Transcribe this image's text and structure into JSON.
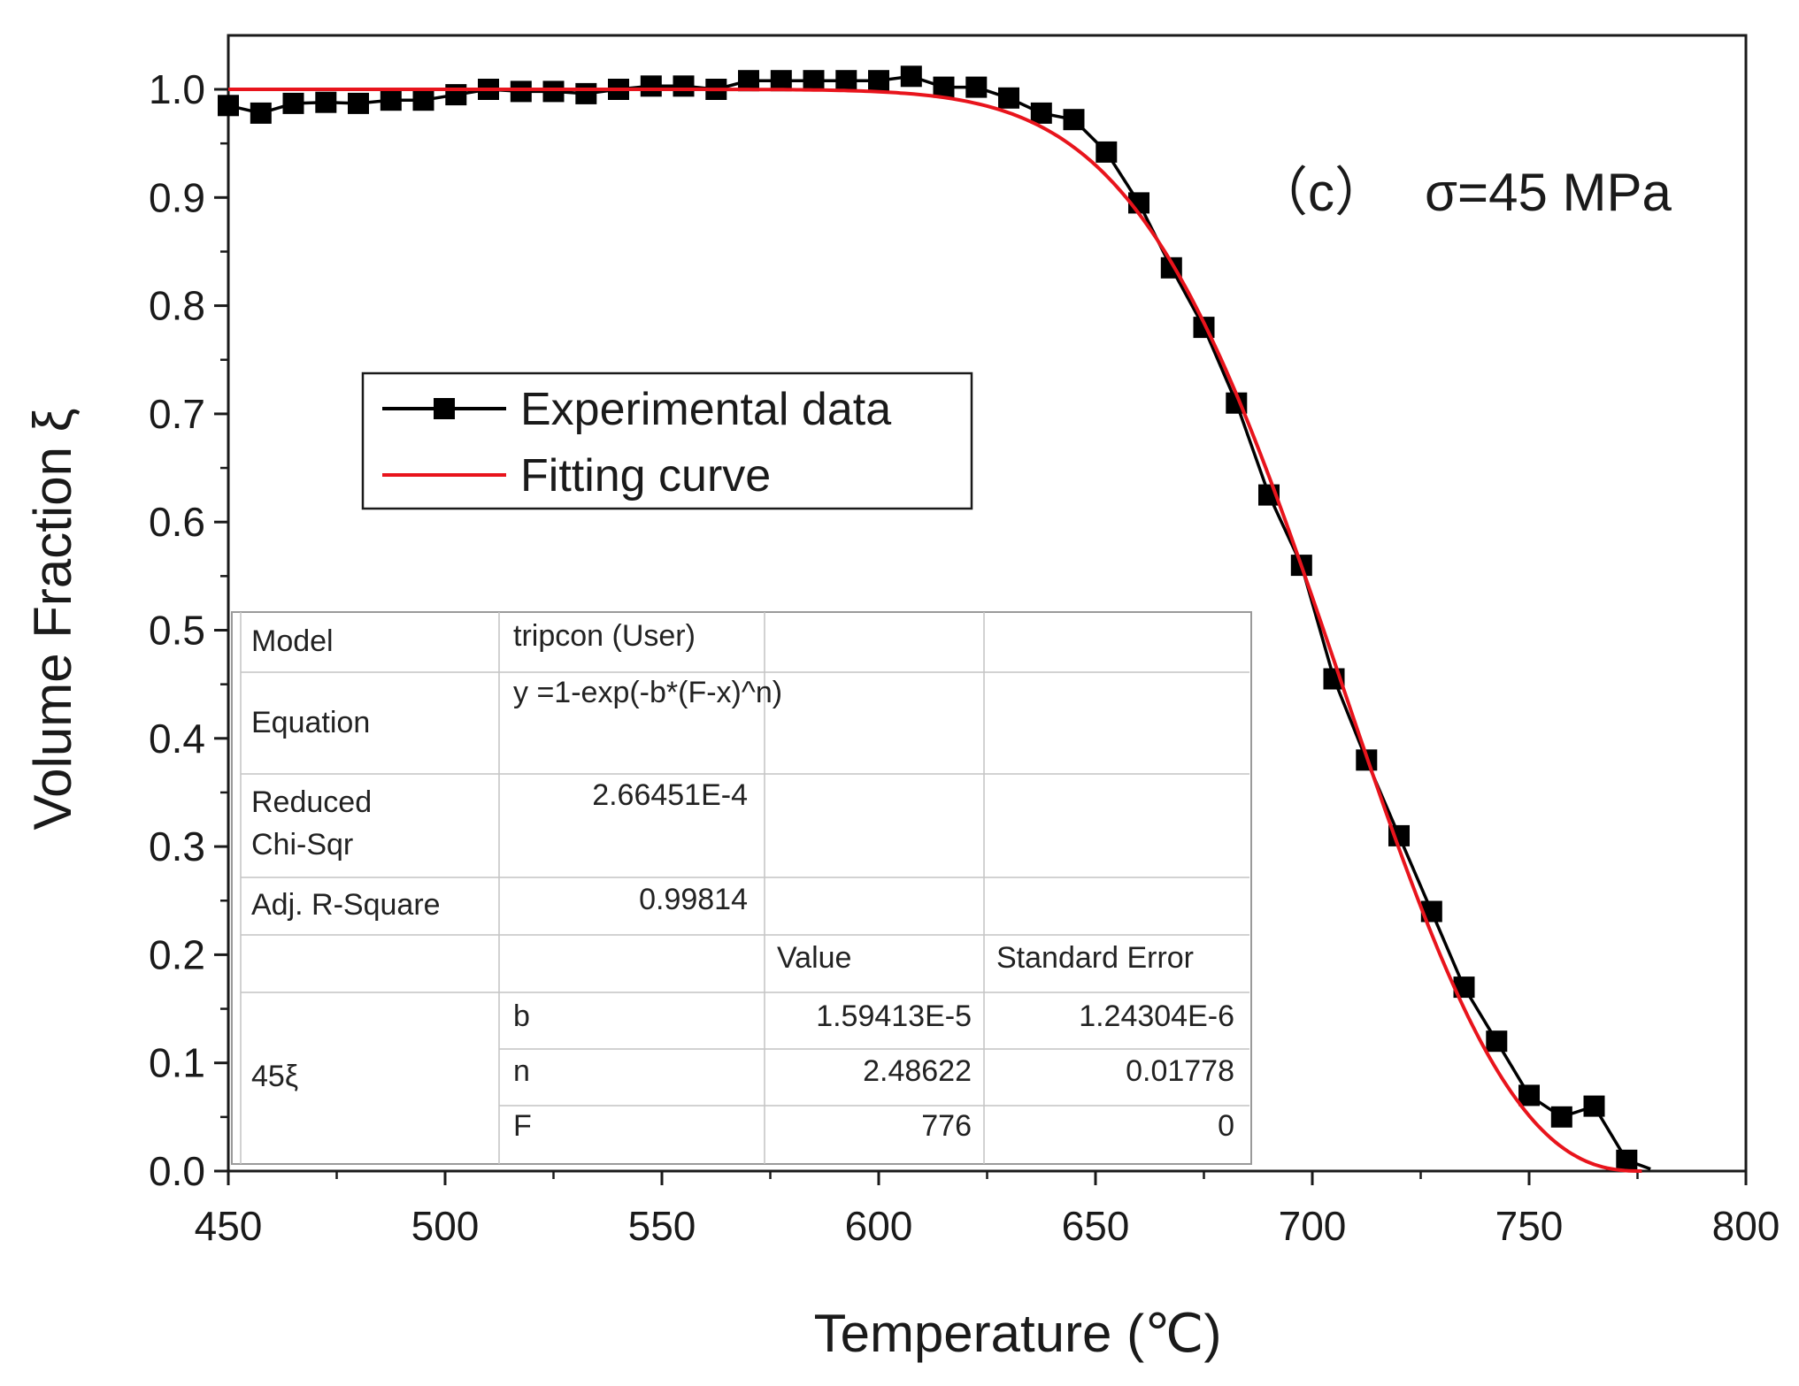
{
  "chart_data": {
    "type": "line",
    "panel_label": "（c）",
    "stress_label": "σ=45 MPa",
    "xlabel": "Temperature (℃)",
    "ylabel": "Volume Fraction ξ",
    "xlim": [
      450,
      800
    ],
    "ylim": [
      0.0,
      1.05
    ],
    "x_ticks": [
      "450",
      "500",
      "550",
      "600",
      "650",
      "700",
      "750",
      "800"
    ],
    "y_ticks": [
      "0.0",
      "0.1",
      "0.2",
      "0.3",
      "0.4",
      "0.5",
      "0.6",
      "0.7",
      "0.8",
      "0.9",
      "1.0"
    ],
    "legend_position": "upper-left",
    "series": [
      {
        "name": "Experimental data",
        "style": "line-with-square-markers",
        "color": "#000000",
        "x": [
          450,
          457.5,
          465,
          472.5,
          480,
          487.5,
          495,
          502.5,
          510,
          517.5,
          525,
          532.5,
          540,
          547.5,
          555,
          562.5,
          570,
          577.5,
          585,
          592.5,
          600,
          607.5,
          615,
          622.5,
          630,
          637.5,
          645,
          652.5,
          660,
          667.5,
          675,
          682.5,
          690,
          697.5,
          705,
          712.5,
          720,
          727.5,
          735,
          742.5,
          750,
          757.5,
          765,
          772.5,
          778
        ],
        "y": [
          0.985,
          0.978,
          0.987,
          0.988,
          0.987,
          0.99,
          0.99,
          0.995,
          1.0,
          0.998,
          0.998,
          0.996,
          1.0,
          1.003,
          1.003,
          1.0,
          1.008,
          1.008,
          1.008,
          1.008,
          1.008,
          1.012,
          1.002,
          1.002,
          0.992,
          0.978,
          0.972,
          0.942,
          0.895,
          0.835,
          0.78,
          0.71,
          0.625,
          0.56,
          0.455,
          0.38,
          0.31,
          0.24,
          0.17,
          0.12,
          0.07,
          0.05,
          0.06,
          0.01,
          0.002
        ]
      },
      {
        "name": "Fitting curve",
        "style": "line",
        "color": "#e8141c",
        "model": {
          "b": 1.59413e-05,
          "n": 2.48622,
          "F": 776
        }
      }
    ],
    "fit_table": {
      "rows": [
        {
          "label": "Model",
          "value": "tripcon (User)"
        },
        {
          "label": "Equation",
          "value": "y =1-exp(-b*(F-x)^n)"
        },
        {
          "label": "Reduced\nChi-Sqr",
          "value": "2.66451E-4"
        },
        {
          "label": "Adj. R-Square",
          "value": "0.99814"
        }
      ],
      "param_header": {
        "value": "Value",
        "error": "Standard Error"
      },
      "group_label": "45ξ",
      "params": [
        {
          "name": "b",
          "value": "1.59413E-5",
          "error": "1.24304E-6"
        },
        {
          "name": "n",
          "value": "2.48622",
          "error": "0.01778"
        },
        {
          "name": "F",
          "value": "776",
          "error": "0"
        }
      ]
    }
  }
}
